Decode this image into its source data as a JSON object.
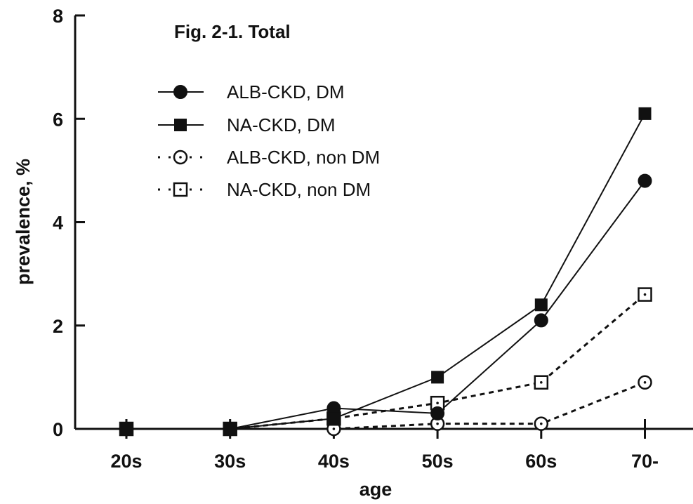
{
  "chart_data": {
    "type": "line",
    "title": "Fig. 2-1. Total",
    "xlabel": "age",
    "ylabel": "prevalence, %",
    "categories": [
      "20s",
      "30s",
      "40s",
      "50s",
      "60s",
      "70-"
    ],
    "yticks": [
      "0",
      "2",
      "4",
      "6",
      "8"
    ],
    "ylim": [
      0,
      8
    ],
    "grid": false,
    "legend_position": "top-left",
    "series": [
      {
        "name": "ALB-CKD, DM",
        "values": [
          0,
          0,
          0.4,
          0.3,
          2.1,
          4.8
        ],
        "marker": "filled-circle",
        "line": "solid"
      },
      {
        "name": "NA-CKD, DM",
        "values": [
          0,
          0,
          0.2,
          1.0,
          2.4,
          6.1
        ],
        "marker": "filled-square",
        "line": "solid"
      },
      {
        "name": "ALB-CKD, non DM",
        "values": [
          0,
          0,
          0.0,
          0.1,
          0.1,
          0.9
        ],
        "marker": "open-circle",
        "line": "dotted"
      },
      {
        "name": "NA-CKD, non DM",
        "values": [
          0,
          0,
          0.2,
          0.5,
          0.9,
          2.6
        ],
        "marker": "open-square",
        "line": "dotted"
      }
    ]
  }
}
